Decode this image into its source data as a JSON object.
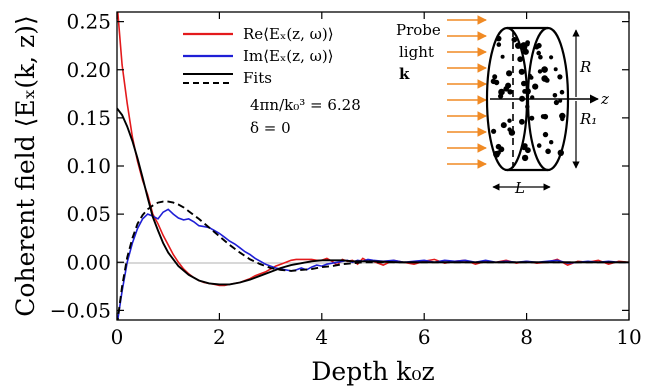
{
  "chart_data": {
    "type": "line",
    "xlabel": "Depth k₀z",
    "ylabel": "Coherent field ⟨Eₓ(k, z)⟩",
    "xlim": [
      0,
      10
    ],
    "ylim": [
      -0.06,
      0.26
    ],
    "xticks": [
      0,
      2,
      4,
      6,
      8,
      10
    ],
    "xtick_labels": [
      "0",
      "2",
      "4",
      "6",
      "8",
      "10"
    ],
    "yticks": [
      -0.05,
      0.0,
      0.05,
      0.1,
      0.15,
      0.2,
      0.25
    ],
    "ytick_labels": [
      "−0.05",
      "0.00",
      "0.05",
      "0.10",
      "0.15",
      "0.20",
      "0.25"
    ],
    "grid": false,
    "legend_position": "top-center",
    "series": [
      {
        "name": "Re⟨Eₓ(z, ω)⟩",
        "color": "#e31a1c",
        "style": "noisy",
        "x": [
          0,
          0.1,
          0.2,
          0.3,
          0.4,
          0.5,
          0.6,
          0.7,
          0.8,
          0.9,
          1.0,
          1.1,
          1.2,
          1.3,
          1.4,
          1.5,
          1.6,
          1.7,
          1.8,
          1.9,
          2.0,
          2.1,
          2.2,
          2.3,
          2.4,
          2.5,
          2.6,
          2.7,
          2.8,
          2.9,
          3.0,
          3.1,
          3.2,
          3.3,
          3.4,
          3.5,
          3.6,
          3.7,
          3.8,
          3.9,
          4.0,
          4.1,
          4.2,
          4.3,
          4.4,
          4.5,
          4.6,
          4.7,
          4.8,
          4.9,
          5.0,
          5.2,
          5.4,
          5.6,
          5.8,
          6.0,
          6.2,
          6.4,
          6.6,
          6.8,
          7.0,
          7.2,
          7.4,
          7.6,
          7.8,
          8.0,
          8.2,
          8.4,
          8.6,
          8.8,
          9.0,
          9.2,
          9.4,
          9.6,
          9.8,
          10.0
        ],
        "y": [
          0.27,
          0.205,
          0.165,
          0.13,
          0.105,
          0.085,
          0.07,
          0.05,
          0.04,
          0.028,
          0.018,
          0.008,
          0.0,
          -0.007,
          -0.012,
          -0.016,
          -0.019,
          -0.021,
          -0.022,
          -0.023,
          -0.024,
          -0.024,
          -0.023,
          -0.022,
          -0.021,
          -0.019,
          -0.017,
          -0.014,
          -0.012,
          -0.01,
          -0.007,
          -0.004,
          -0.002,
          0.0,
          0.002,
          0.003,
          0.003,
          0.003,
          0.003,
          0.002,
          0.002,
          0.004,
          0.001,
          -0.003,
          0.003,
          0.001,
          0.002,
          -0.002,
          0.004,
          0.001,
          0.001,
          -0.003,
          0.002,
          0.0,
          -0.002,
          0.001,
          0.003,
          -0.001,
          0.001,
          0.002,
          -0.002,
          0.001,
          0.0,
          0.002,
          -0.001,
          0.001,
          -0.001,
          0.0,
          0.003,
          -0.003,
          0.001,
          0.0,
          0.002,
          -0.002,
          0.001,
          0.0
        ]
      },
      {
        "name": "Im⟨Eₓ(z, ω)⟩",
        "color": "#1f1fd6",
        "style": "noisy",
        "x": [
          0,
          0.1,
          0.2,
          0.3,
          0.4,
          0.5,
          0.6,
          0.7,
          0.8,
          0.9,
          1.0,
          1.1,
          1.2,
          1.3,
          1.4,
          1.5,
          1.6,
          1.7,
          1.8,
          1.9,
          2.0,
          2.1,
          2.2,
          2.3,
          2.4,
          2.5,
          2.6,
          2.7,
          2.8,
          2.9,
          3.0,
          3.1,
          3.2,
          3.3,
          3.4,
          3.5,
          3.6,
          3.7,
          3.8,
          3.9,
          4.0,
          4.1,
          4.2,
          4.3,
          4.4,
          4.5,
          4.6,
          4.7,
          4.8,
          4.9,
          5.0,
          5.2,
          5.4,
          5.6,
          5.8,
          6.0,
          6.2,
          6.4,
          6.6,
          6.8,
          7.0,
          7.2,
          7.4,
          7.6,
          7.8,
          8.0,
          8.2,
          8.4,
          8.6,
          8.8,
          9.0,
          9.2,
          9.4,
          9.6,
          9.8,
          10.0
        ],
        "y": [
          -0.065,
          -0.03,
          0.0,
          0.02,
          0.035,
          0.045,
          0.05,
          0.048,
          0.045,
          0.052,
          0.055,
          0.05,
          0.046,
          0.044,
          0.045,
          0.042,
          0.038,
          0.037,
          0.036,
          0.033,
          0.03,
          0.026,
          0.022,
          0.019,
          0.015,
          0.011,
          0.008,
          0.004,
          0.001,
          -0.002,
          -0.004,
          -0.006,
          -0.007,
          -0.008,
          -0.009,
          -0.008,
          -0.006,
          -0.008,
          -0.005,
          -0.003,
          -0.004,
          -0.002,
          -0.001,
          0.0,
          0.001,
          0.002,
          0.0,
          0.002,
          0.001,
          0.003,
          0.002,
          0.001,
          0.002,
          0.0,
          0.001,
          0.002,
          0.0,
          0.002,
          0.001,
          0.002,
          0.0,
          0.002,
          0.0,
          0.001,
          0.0,
          0.001,
          0.0,
          0.001,
          0.002,
          -0.001,
          0.0,
          0.001,
          0.0,
          0.001,
          0.0,
          0.0
        ]
      },
      {
        "name": "Fits",
        "color": "#000000",
        "style": "solid",
        "x": [
          0,
          0.1,
          0.2,
          0.3,
          0.4,
          0.5,
          0.6,
          0.7,
          0.8,
          0.9,
          1.0,
          1.2,
          1.4,
          1.6,
          1.8,
          2.0,
          2.2,
          2.4,
          2.6,
          2.8,
          3.0,
          3.2,
          3.4,
          3.6,
          3.8,
          4.0,
          4.2,
          4.4,
          4.6,
          4.8,
          5.0,
          5.5,
          6.0,
          7.0,
          8.0,
          9.0,
          10.0
        ],
        "y": [
          0.16,
          0.153,
          0.141,
          0.126,
          0.108,
          0.088,
          0.067,
          0.047,
          0.033,
          0.02,
          0.01,
          -0.004,
          -0.013,
          -0.019,
          -0.022,
          -0.023,
          -0.023,
          -0.021,
          -0.018,
          -0.014,
          -0.01,
          -0.006,
          -0.003,
          -0.001,
          0.001,
          0.002,
          0.002,
          0.002,
          0.001,
          0.001,
          0.001,
          0.0,
          0.0,
          0.0,
          0.0,
          0.0,
          0.0
        ]
      },
      {
        "name": "Fits",
        "color": "#000000",
        "style": "dashed",
        "x": [
          0,
          0.1,
          0.2,
          0.3,
          0.4,
          0.5,
          0.6,
          0.7,
          0.8,
          0.9,
          1.0,
          1.1,
          1.2,
          1.3,
          1.4,
          1.5,
          1.6,
          1.8,
          2.0,
          2.2,
          2.4,
          2.6,
          2.8,
          3.0,
          3.2,
          3.4,
          3.6,
          3.8,
          4.0,
          4.2,
          4.4,
          4.6,
          4.8,
          5.0,
          5.5,
          6.0,
          7.0,
          8.0,
          9.0,
          10.0
        ],
        "y": [
          -0.065,
          -0.025,
          0.005,
          0.025,
          0.04,
          0.049,
          0.055,
          0.059,
          0.062,
          0.063,
          0.063,
          0.062,
          0.06,
          0.057,
          0.053,
          0.049,
          0.045,
          0.036,
          0.027,
          0.018,
          0.01,
          0.003,
          -0.002,
          -0.006,
          -0.008,
          -0.009,
          -0.008,
          -0.007,
          -0.005,
          -0.004,
          -0.002,
          -0.001,
          0.0,
          0.0,
          0.0,
          0.0,
          0.0,
          0.0,
          0.0,
          0.0
        ]
      }
    ],
    "legend": [
      {
        "label": "Re⟨Eₓ(z, ω)⟩",
        "color": "#e31a1c",
        "style": "solid"
      },
      {
        "label": "Im⟨Eₓ(z, ω)⟩",
        "color": "#1f1fd6",
        "style": "solid"
      },
      {
        "label": "Fits",
        "color": "#000000",
        "style": "solid+dashed"
      }
    ],
    "annotations": [
      "4πn/k₀³ = 6.28",
      "δ = 0"
    ]
  },
  "inset": {
    "probe_label_1": "Probe",
    "probe_label_2": "light",
    "probe_label_3": "k",
    "R_label": "R",
    "R1_label": "R₁",
    "z_label": "z",
    "L_label": "L",
    "arrow_color": "#f08a24",
    "dot_color": "#000000"
  }
}
